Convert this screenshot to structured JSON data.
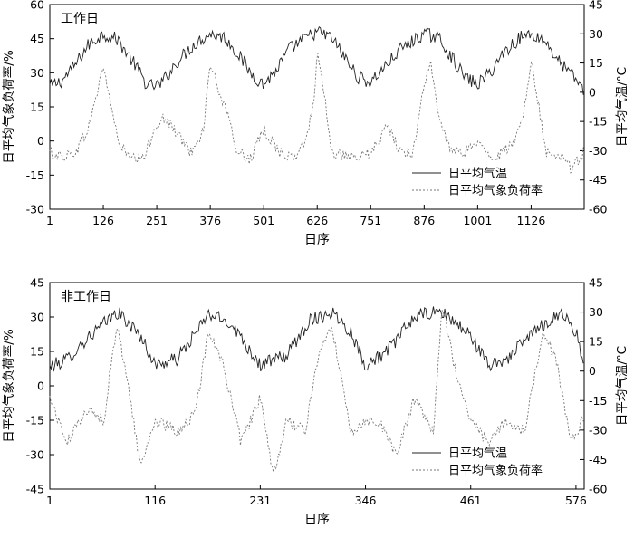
{
  "chart_data": [
    {
      "type": "line",
      "panel_label": "工作日",
      "xlabel": "日序",
      "ylabel_left": "日平均气象负荷率/%",
      "ylabel_right": "日平均气温/°C",
      "xlim": [
        1,
        1250
      ],
      "x_ticks": [
        1,
        126,
        251,
        376,
        501,
        626,
        751,
        876,
        1001,
        1126
      ],
      "ylim_left": [
        -30,
        60
      ],
      "y_ticks_left": [
        -30,
        -15,
        0,
        15,
        30,
        45,
        60
      ],
      "ylim_right": [
        -60,
        45
      ],
      "y_ticks_right": [
        -60,
        -45,
        -30,
        -15,
        0,
        15,
        30,
        45
      ],
      "legend_position": "bottom-right",
      "series": [
        {
          "name": "日平均气温",
          "axis": "right",
          "style": "solid",
          "x": [
            1,
            30,
            60,
            90,
            126,
            160,
            200,
            230,
            260,
            300,
            340,
            376,
            410,
            440,
            470,
            500,
            530,
            560,
            600,
            626,
            660,
            690,
            720,
            750,
            780,
            820,
            876,
            910,
            940,
            970,
            1000,
            1030,
            1060,
            1100,
            1126,
            1160,
            1190,
            1225,
            1248
          ],
          "y": [
            3,
            6,
            14,
            24,
            30,
            27,
            14,
            3,
            4,
            16,
            25,
            30,
            28,
            20,
            10,
            4,
            11,
            22,
            28,
            31,
            28,
            18,
            8,
            5,
            12,
            22,
            30,
            28,
            18,
            8,
            4,
            10,
            20,
            28,
            30,
            26,
            16,
            8,
            2
          ]
        },
        {
          "name": "日平均气象负荷率",
          "axis": "left",
          "style": "dashed",
          "x": [
            1,
            30,
            60,
            90,
            110,
            126,
            140,
            160,
            190,
            220,
            251,
            270,
            300,
            330,
            360,
            376,
            390,
            410,
            440,
            470,
            501,
            520,
            540,
            570,
            600,
            620,
            626,
            640,
            660,
            690,
            720,
            751,
            770,
            790,
            820,
            850,
            876,
            890,
            910,
            940,
            970,
            1001,
            1030,
            1060,
            1090,
            1110,
            1126,
            1140,
            1160,
            1190,
            1220,
            1248
          ],
          "y": [
            -5,
            -7,
            -5,
            5,
            20,
            33,
            20,
            0,
            -8,
            -8,
            8,
            10,
            3,
            -5,
            5,
            35,
            25,
            15,
            -5,
            -8,
            5,
            0,
            -5,
            -8,
            0,
            20,
            39,
            25,
            -5,
            -7,
            -8,
            -5,
            0,
            7,
            -5,
            -5,
            25,
            35,
            10,
            -5,
            -5,
            0,
            -8,
            -5,
            0,
            15,
            35,
            20,
            -5,
            -5,
            -12,
            -5
          ]
        }
      ]
    },
    {
      "type": "line",
      "panel_label": "非工作日",
      "xlabel": "日序",
      "ylabel_left": "日平均气象负荷率/%",
      "ylabel_right": "日平均气温/°C",
      "xlim": [
        1,
        585
      ],
      "x_ticks": [
        1,
        116,
        231,
        346,
        461,
        576
      ],
      "ylim_left": [
        -45,
        45
      ],
      "y_ticks_left": [
        -45,
        -30,
        -15,
        0,
        15,
        30,
        45
      ],
      "ylim_right": [
        -60,
        45
      ],
      "y_ticks_right": [
        -60,
        -45,
        -30,
        -15,
        0,
        15,
        30,
        45
      ],
      "legend_position": "bottom-right",
      "series": [
        {
          "name": "日平均气温",
          "axis": "right",
          "style": "solid",
          "x": [
            1,
            20,
            45,
            75,
            100,
            116,
            140,
            175,
            200,
            231,
            260,
            285,
            310,
            330,
            346,
            370,
            400,
            430,
            461,
            480,
            500,
            530,
            560,
            576,
            584
          ],
          "y": [
            2,
            6,
            18,
            30,
            18,
            3,
            6,
            29,
            24,
            3,
            8,
            26,
            30,
            20,
            3,
            10,
            28,
            30,
            18,
            3,
            6,
            20,
            30,
            20,
            4
          ]
        },
        {
          "name": "日平均气象负荷率",
          "axis": "left",
          "style": "dashed",
          "x": [
            1,
            20,
            40,
            60,
            70,
            75,
            85,
            100,
            116,
            140,
            160,
            175,
            190,
            210,
            231,
            245,
            260,
            280,
            295,
            310,
            330,
            346,
            360,
            380,
            400,
            420,
            430,
            445,
            461,
            480,
            500,
            520,
            540,
            555,
            570,
            584
          ],
          "y": [
            -5,
            -25,
            -10,
            -15,
            15,
            25,
            5,
            -35,
            -15,
            -20,
            -12,
            25,
            10,
            -25,
            -5,
            -40,
            -15,
            -20,
            15,
            25,
            -20,
            -15,
            -15,
            -30,
            -5,
            -20,
            35,
            5,
            -15,
            -25,
            -15,
            -20,
            25,
            10,
            -25,
            -15
          ]
        }
      ]
    }
  ]
}
